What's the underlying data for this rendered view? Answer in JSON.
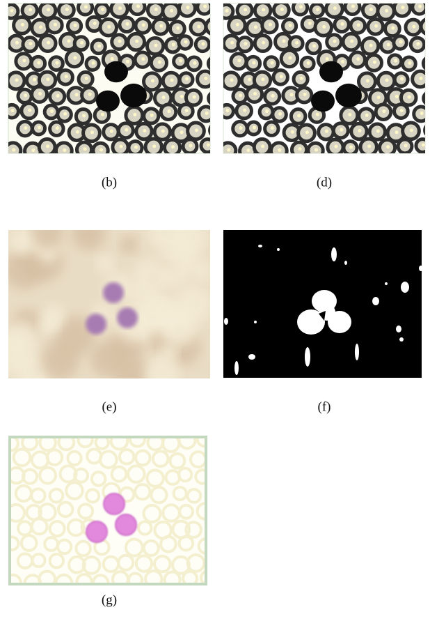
{
  "panels": [
    {
      "label": "(b)"
    },
    {
      "label": "(d)"
    },
    {
      "label": "(e)"
    },
    {
      "label": "(f)"
    },
    {
      "label": "(g)"
    }
  ]
}
